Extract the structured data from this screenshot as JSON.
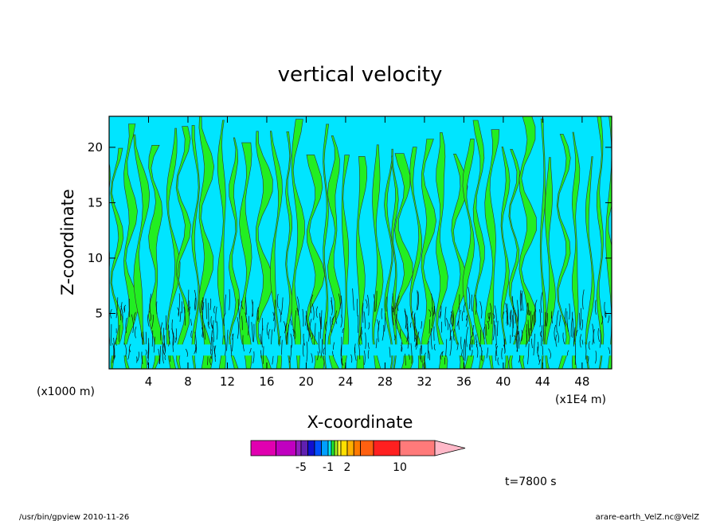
{
  "chart_data": {
    "type": "contour",
    "title": "vertical velocity",
    "xlabel": "X-coordinate",
    "ylabel": "Z-coordinate",
    "x_unit_label": "(x1000 m)",
    "x_scale_label": "(x1E4 m)",
    "xlim": [
      0,
      51
    ],
    "ylim": [
      0,
      22.8
    ],
    "x_ticks": [
      4,
      8,
      12,
      16,
      20,
      24,
      28,
      32,
      36,
      40,
      44,
      48
    ],
    "y_ticks": [
      5,
      10,
      15,
      20
    ],
    "time_label": "t=7800 s",
    "colorbar": {
      "labels": [
        {
          "text": "-5",
          "at": -5
        },
        {
          "text": "-1",
          "at": -1
        },
        {
          "text": "2",
          "at": 2
        },
        {
          "text": "10",
          "at": 10
        }
      ],
      "levels": [
        -15,
        -10,
        -6,
        -5,
        -4,
        -3,
        -2,
        -1,
        -0.5,
        0,
        0.5,
        1,
        2,
        3,
        4,
        6,
        10,
        15,
        20
      ],
      "colors": [
        "#e000b0",
        "#c000c0",
        "#9020c0",
        "#6020b0",
        "#1010d0",
        "#0050ff",
        "#00a0ff",
        "#00e8ff",
        "#20e830",
        "#a0f020",
        "#ffff30",
        "#ffe000",
        "#ffb000",
        "#ff7a00",
        "#ff6010",
        "#ff2020",
        "#ff7a7a",
        "#ffb8c8"
      ]
    },
    "field_colors": {
      "negative": "#00e5ff",
      "positive": "#22ee22"
    }
  },
  "footer": {
    "left": "/usr/bin/gpview   2010-11-26",
    "right": "arare-earth_VelZ.nc@VelZ"
  }
}
